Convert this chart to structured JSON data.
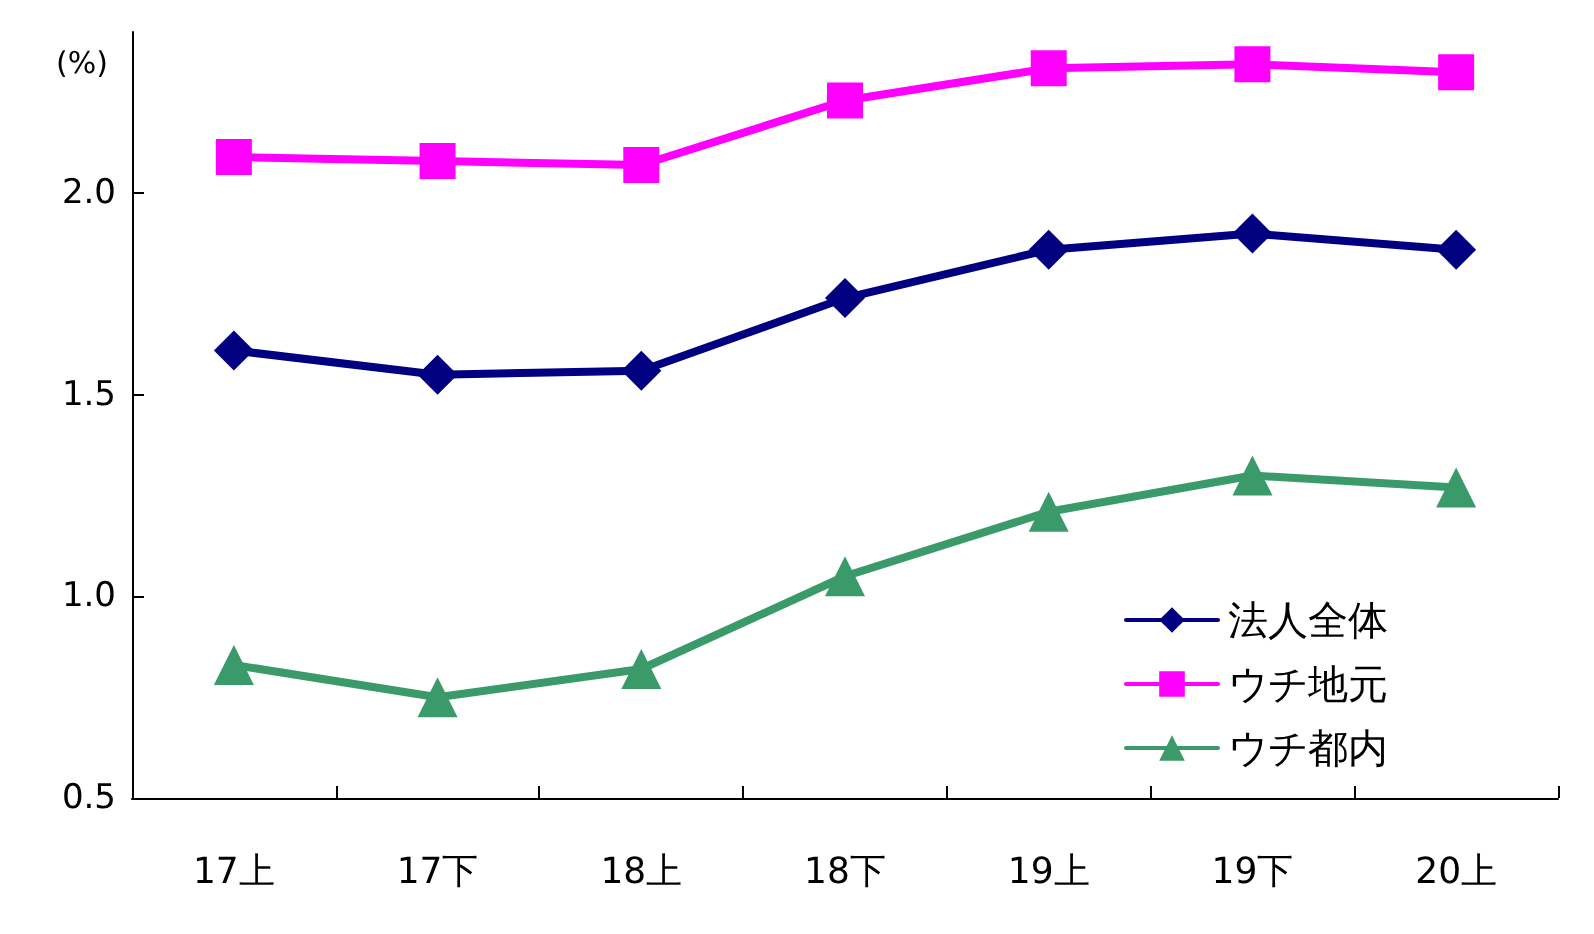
{
  "chart_data": {
    "type": "line",
    "ylabel": "(%)",
    "categories": [
      "17上",
      "17下",
      "18上",
      "18下",
      "19上",
      "19下",
      "20上"
    ],
    "series": [
      {
        "name": "法人全体",
        "color": "#000080",
        "marker": "diamond",
        "values": [
          1.61,
          1.55,
          1.56,
          1.74,
          1.86,
          1.9,
          1.86
        ]
      },
      {
        "name": "ウチ地元",
        "color": "#ff00ff",
        "marker": "square",
        "values": [
          2.09,
          2.08,
          2.07,
          2.23,
          2.31,
          2.32,
          2.3
        ]
      },
      {
        "name": "ウチ都内",
        "color": "#3a9a6a",
        "marker": "triangle",
        "values": [
          0.83,
          0.75,
          0.82,
          1.05,
          1.21,
          1.3,
          1.27
        ]
      }
    ],
    "ylim": [
      0.5,
      2.4
    ],
    "yticks": [
      {
        "value": 0.5,
        "label": "0.5"
      },
      {
        "value": 1.0,
        "label": "1.0"
      },
      {
        "value": 1.5,
        "label": "1.5"
      },
      {
        "value": 2.0,
        "label": "2.0"
      }
    ],
    "grid": false,
    "legend": "bottom right",
    "line_style": "solid"
  }
}
